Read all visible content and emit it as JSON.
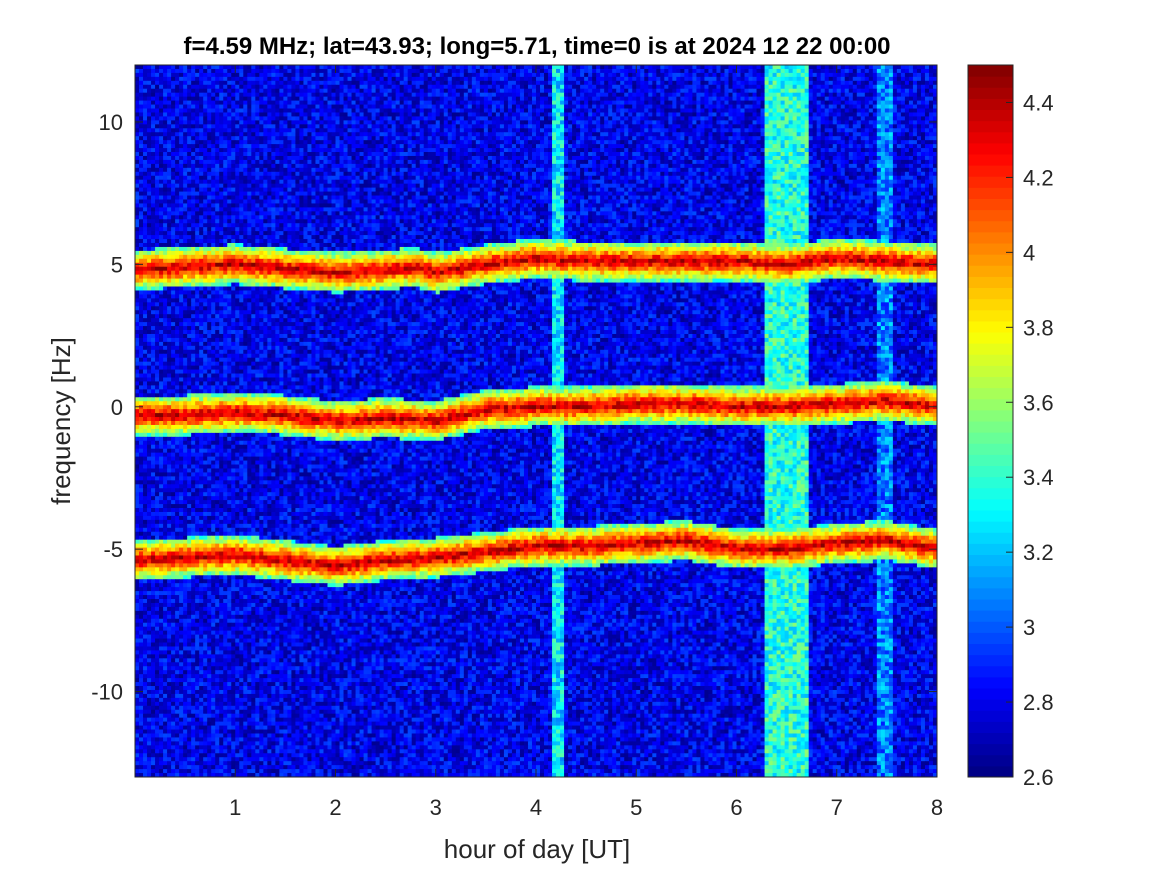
{
  "chart_data": {
    "type": "heatmap",
    "title": "f=4.59 MHz;  lat=43.93; long=5.71, time=0 is at 2024 12 22 00:00",
    "xlabel": "hour of day [UT]",
    "ylabel": "frequency [Hz]",
    "xlim": [
      0,
      8
    ],
    "ylim": [
      -13,
      12
    ],
    "xticks": [
      1,
      2,
      3,
      4,
      5,
      6,
      7,
      8
    ],
    "yticks": [
      10,
      5,
      0,
      -5,
      -10
    ],
    "colorbar": {
      "colormap": "jet",
      "clim": [
        2.6,
        4.5
      ],
      "ticks": [
        4.4,
        4.2,
        4,
        3.8,
        3.6,
        3.4,
        3.2,
        3,
        2.8,
        2.6
      ]
    },
    "background_level": 2.8,
    "traces": [
      {
        "center_freq": 5,
        "level": 4.4,
        "points": [
          [
            0,
            4.8
          ],
          [
            0.5,
            4.9
          ],
          [
            1,
            5.0
          ],
          [
            1.5,
            4.85
          ],
          [
            2,
            4.7
          ],
          [
            2.5,
            4.8
          ],
          [
            2.8,
            4.9
          ],
          [
            3,
            4.7
          ],
          [
            3.5,
            5.0
          ],
          [
            4,
            5.2
          ],
          [
            4.5,
            5.1
          ],
          [
            5,
            5.1
          ],
          [
            5.5,
            5.1
          ],
          [
            6,
            5.1
          ],
          [
            6.5,
            5.0
          ],
          [
            7,
            5.2
          ],
          [
            7.5,
            5.1
          ],
          [
            8,
            5.0
          ]
        ]
      },
      {
        "center_freq": 0,
        "level": 4.4,
        "points": [
          [
            0,
            -0.3
          ],
          [
            0.5,
            -0.3
          ],
          [
            1,
            -0.2
          ],
          [
            1.5,
            -0.3
          ],
          [
            2,
            -0.5
          ],
          [
            2.5,
            -0.4
          ],
          [
            3,
            -0.5
          ],
          [
            3.5,
            -0.1
          ],
          [
            4,
            0.0
          ],
          [
            4.5,
            0.0
          ],
          [
            5,
            0.1
          ],
          [
            5.5,
            0.1
          ],
          [
            6,
            0.0
          ],
          [
            6.5,
            0.0
          ],
          [
            7,
            0.1
          ],
          [
            7.5,
            0.2
          ],
          [
            8,
            0.0
          ]
        ]
      },
      {
        "center_freq": -5,
        "level": 4.4,
        "points": [
          [
            0,
            -5.4
          ],
          [
            0.5,
            -5.3
          ],
          [
            1,
            -5.2
          ],
          [
            1.5,
            -5.4
          ],
          [
            2,
            -5.6
          ],
          [
            2.5,
            -5.4
          ],
          [
            3,
            -5.3
          ],
          [
            3.5,
            -5.1
          ],
          [
            4,
            -4.9
          ],
          [
            4.5,
            -4.9
          ],
          [
            5,
            -4.8
          ],
          [
            5.5,
            -4.7
          ],
          [
            6,
            -5.0
          ],
          [
            6.5,
            -5.0
          ],
          [
            7,
            -4.8
          ],
          [
            7.5,
            -4.7
          ],
          [
            8,
            -5.0
          ]
        ]
      }
    ],
    "broadband_bursts": [
      {
        "x_start": 4.15,
        "x_end": 4.28,
        "level": 3.2
      },
      {
        "x_start": 6.28,
        "x_end": 6.72,
        "level": 3.3
      },
      {
        "x_start": 7.42,
        "x_end": 7.55,
        "level": 3.0
      }
    ]
  }
}
